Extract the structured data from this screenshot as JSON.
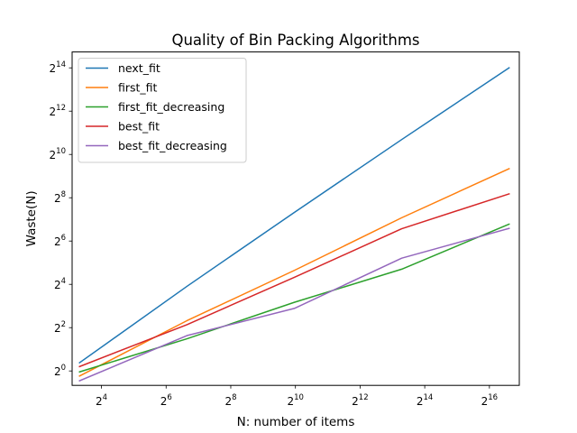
{
  "chart_data": {
    "type": "line",
    "title": "Quality of Bin Packing Algorithms",
    "xlabel": "N: number of items",
    "ylabel": "Waste(N)",
    "xscale": "log2",
    "yscale": "log2",
    "xlim": [
      8.53,
      124416
    ],
    "ylim": [
      0.63,
      27250
    ],
    "x_ticks": [
      {
        "value": 16,
        "base": "2",
        "exp": "4"
      },
      {
        "value": 64,
        "base": "2",
        "exp": "6"
      },
      {
        "value": 256,
        "base": "2",
        "exp": "8"
      },
      {
        "value": 1024,
        "base": "2",
        "exp": "10"
      },
      {
        "value": 4096,
        "base": "2",
        "exp": "12"
      },
      {
        "value": 16384,
        "base": "2",
        "exp": "14"
      },
      {
        "value": 65536,
        "base": "2",
        "exp": "16"
      }
    ],
    "y_ticks": [
      {
        "value": 1,
        "base": "2",
        "exp": "0"
      },
      {
        "value": 4,
        "base": "2",
        "exp": "2"
      },
      {
        "value": 16,
        "base": "2",
        "exp": "4"
      },
      {
        "value": 64,
        "base": "2",
        "exp": "6"
      },
      {
        "value": 256,
        "base": "2",
        "exp": "8"
      },
      {
        "value": 1024,
        "base": "2",
        "exp": "10"
      },
      {
        "value": 4096,
        "base": "2",
        "exp": "12"
      },
      {
        "value": 16384,
        "base": "2",
        "exp": "14"
      }
    ],
    "x": [
      10,
      100,
      1000,
      10000,
      100000
    ],
    "series": [
      {
        "name": "next_fit",
        "color": "#1f77b4",
        "values": [
          1.3,
          15,
          160,
          1650,
          16400
        ]
      },
      {
        "name": "first_fit",
        "color": "#ff7f0e",
        "values": [
          0.85,
          5.0,
          25,
          135,
          650
        ]
      },
      {
        "name": "first_fit_decreasing",
        "color": "#2ca02c",
        "values": [
          0.97,
          2.8,
          9.0,
          26,
          110
        ]
      },
      {
        "name": "best_fit",
        "color": "#d62728",
        "values": [
          1.15,
          4.4,
          20,
          95,
          290
        ]
      },
      {
        "name": "best_fit_decreasing",
        "color": "#9467bd",
        "values": [
          0.73,
          3.1,
          7.4,
          37,
          96
        ]
      }
    ],
    "grid": false,
    "legend_position": "top-left"
  }
}
